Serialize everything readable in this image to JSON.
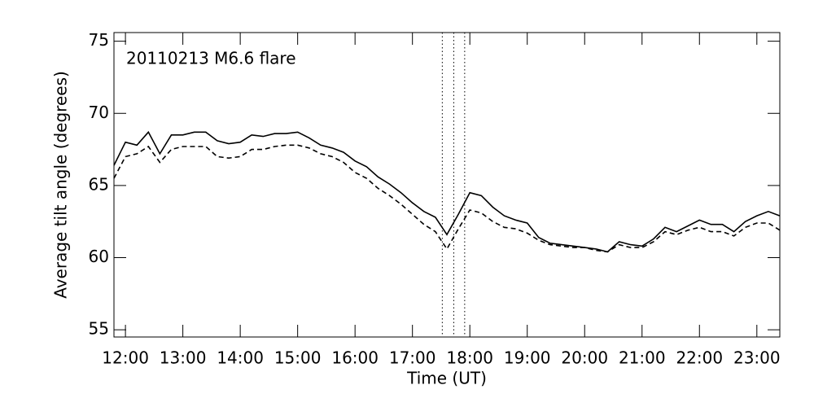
{
  "chart_data": {
    "type": "line",
    "annotation": "20110213 M6.6 flare",
    "x_label": "Time (UT)",
    "y_label": "Average tilt angle (degrees)",
    "x": [
      11.8,
      12.0,
      12.2,
      12.4,
      12.6,
      12.8,
      13.0,
      13.2,
      13.4,
      13.6,
      13.8,
      14.0,
      14.2,
      14.4,
      14.6,
      14.8,
      15.0,
      15.2,
      15.4,
      15.6,
      15.8,
      16.0,
      16.2,
      16.4,
      16.6,
      16.8,
      17.0,
      17.2,
      17.4,
      17.6,
      17.8,
      18.0,
      18.2,
      18.4,
      18.6,
      18.8,
      19.0,
      19.2,
      19.4,
      19.6,
      19.8,
      20.0,
      20.2,
      20.4,
      20.6,
      20.8,
      21.0,
      21.2,
      21.4,
      21.6,
      21.8,
      22.0,
      22.2,
      22.4,
      22.6,
      22.8,
      23.0,
      23.2,
      23.4
    ],
    "series": [
      {
        "color": "#000000",
        "dash": "solid",
        "values": [
          66.4,
          68.0,
          67.8,
          68.7,
          67.2,
          68.5,
          68.5,
          68.7,
          68.7,
          68.1,
          67.9,
          68.0,
          68.5,
          68.4,
          68.6,
          68.6,
          68.7,
          68.3,
          67.8,
          67.6,
          67.3,
          66.7,
          66.3,
          65.6,
          65.1,
          64.5,
          63.8,
          63.2,
          62.8,
          61.6,
          63.0,
          64.5,
          64.3,
          63.5,
          62.9,
          62.6,
          62.4,
          61.4,
          61.0,
          60.9,
          60.8,
          60.7,
          60.6,
          60.4,
          61.1,
          60.9,
          60.8,
          61.3,
          62.1,
          61.8,
          62.2,
          62.6,
          62.3,
          62.3,
          61.8,
          62.5,
          62.9,
          63.2,
          62.9
        ]
      },
      {
        "color": "#000000",
        "dash": "dashed",
        "values": [
          65.5,
          67.0,
          67.2,
          67.7,
          66.6,
          67.5,
          67.7,
          67.7,
          67.7,
          67.0,
          66.9,
          67.0,
          67.5,
          67.5,
          67.7,
          67.8,
          67.8,
          67.6,
          67.2,
          67.0,
          66.6,
          65.9,
          65.5,
          64.8,
          64.3,
          63.7,
          63.0,
          62.3,
          61.8,
          60.6,
          62.0,
          63.3,
          63.1,
          62.5,
          62.1,
          62.0,
          61.7,
          61.2,
          60.9,
          60.8,
          60.7,
          60.7,
          60.5,
          60.4,
          60.9,
          60.7,
          60.7,
          61.1,
          61.8,
          61.6,
          61.9,
          62.1,
          61.8,
          61.8,
          61.5,
          62.1,
          62.4,
          62.4,
          61.9
        ]
      }
    ],
    "vlines": [
      17.52,
      17.72,
      17.91
    ],
    "xlim": [
      11.8,
      23.4
    ],
    "xticks": [
      {
        "value": 12,
        "label": "12:00"
      },
      {
        "value": 13,
        "label": "13:00"
      },
      {
        "value": 14,
        "label": "14:00"
      },
      {
        "value": 15,
        "label": "15:00"
      },
      {
        "value": 16,
        "label": "16:00"
      },
      {
        "value": 17,
        "label": "17:00"
      },
      {
        "value": 18,
        "label": "18:00"
      },
      {
        "value": 19,
        "label": "19:00"
      },
      {
        "value": 20,
        "label": "20:00"
      },
      {
        "value": 21,
        "label": "21:00"
      },
      {
        "value": 22,
        "label": "22:00"
      },
      {
        "value": 23,
        "label": "23:00"
      }
    ],
    "ylim": [
      54.5,
      75.6
    ],
    "yticks": [
      55,
      60,
      65,
      70,
      75
    ],
    "grid": false
  }
}
